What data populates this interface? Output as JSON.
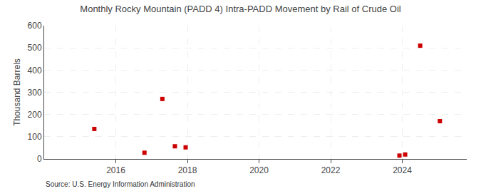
{
  "chart_data": {
    "type": "scatter",
    "title": "Monthly Rocky Mountain (PADD 4) Intra-PADD Movement by Rail of Crude Oil",
    "ylabel": "Thousand Barrels",
    "annotations": [
      "Source: U.S. Energy Information Administration"
    ],
    "x": [
      2015.4,
      2016.8,
      2017.3,
      2017.65,
      2017.95,
      2023.92,
      2024.08,
      2024.5,
      2025.05
    ],
    "values": [
      135,
      28,
      270,
      57,
      52,
      15,
      20,
      510,
      170
    ],
    "color": "#cc0000",
    "marker": "square",
    "xlim": [
      2014.0,
      2025.8
    ],
    "ylim": [
      0,
      600
    ],
    "xticks": [
      2016,
      2018,
      2020,
      2022,
      2024
    ],
    "yticks": [
      0,
      100,
      200,
      300,
      400,
      500,
      600
    ],
    "grid": true
  }
}
